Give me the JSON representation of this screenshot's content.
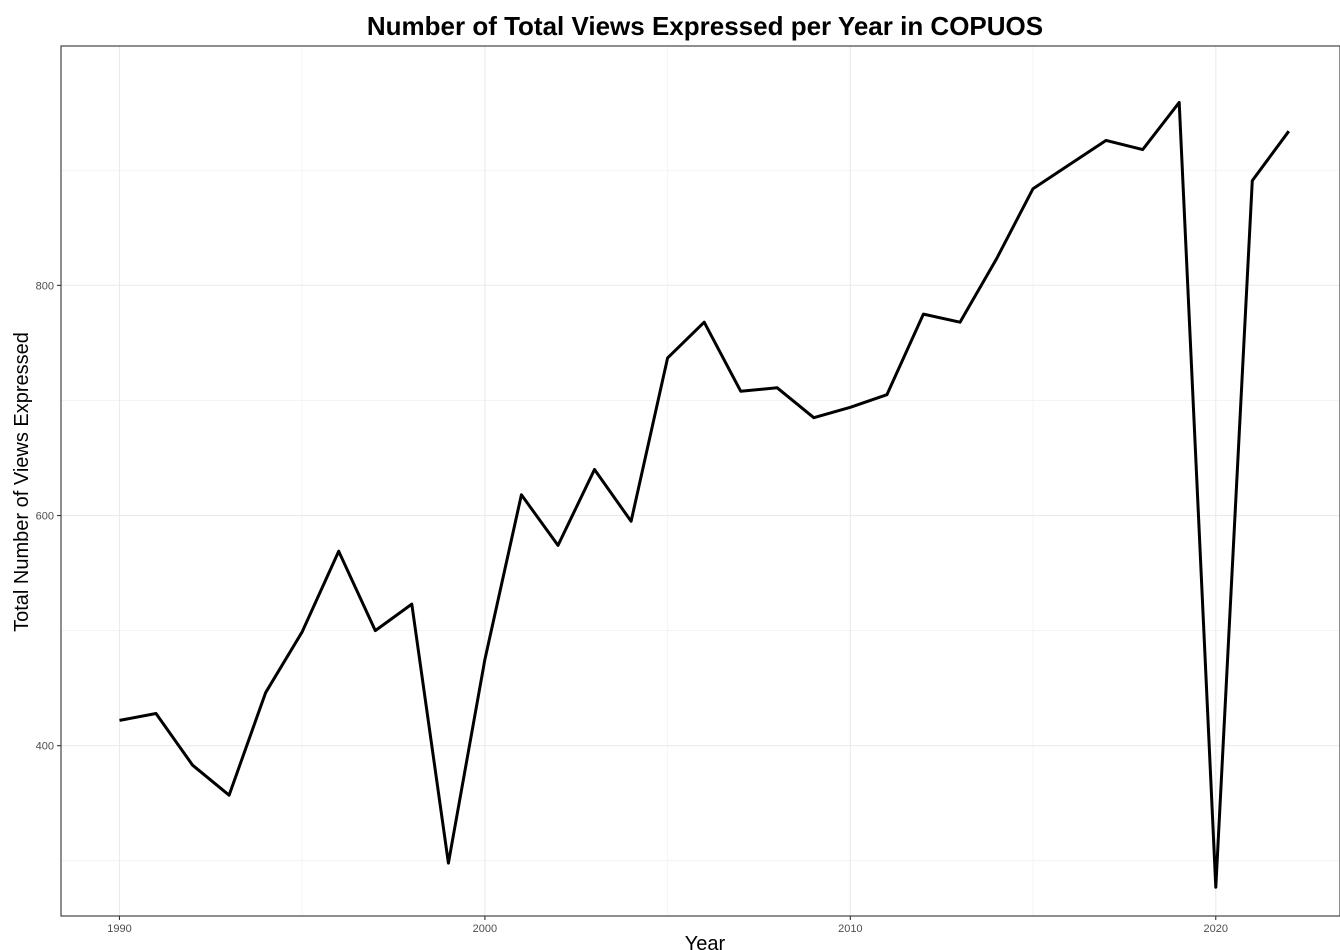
{
  "chart_data": {
    "type": "line",
    "title": "Number of Total Views Expressed per Year in COPUOS",
    "xlabel": "Year",
    "ylabel": "Total Number of Views Expressed",
    "x_ticks": [
      1990,
      2000,
      2010,
      2020
    ],
    "y_ticks": [
      400,
      600,
      800
    ],
    "xlim": [
      1988.4,
      2023.4
    ],
    "ylim": [
      252,
      1008
    ],
    "grid": true,
    "legend": "none",
    "line_color": "#000000",
    "series": [
      {
        "x": [
          1990,
          1991,
          1992,
          1993,
          1994,
          1995,
          1996,
          1997,
          1998,
          1999,
          2000,
          2001,
          2002,
          2003,
          2004,
          2005,
          2006,
          2007,
          2008,
          2009,
          2010,
          2011,
          2012,
          2013,
          2014,
          2015,
          2016,
          2017,
          2018,
          2019,
          2020,
          2021,
          2022
        ],
        "values": [
          422,
          428,
          383,
          357,
          446,
          499,
          569,
          500,
          523,
          298,
          475,
          618,
          574,
          640,
          595,
          737,
          768,
          708,
          711,
          685,
          694,
          705,
          775,
          768,
          823,
          884,
          905,
          926,
          918,
          959,
          277,
          891,
          934
        ]
      }
    ]
  }
}
